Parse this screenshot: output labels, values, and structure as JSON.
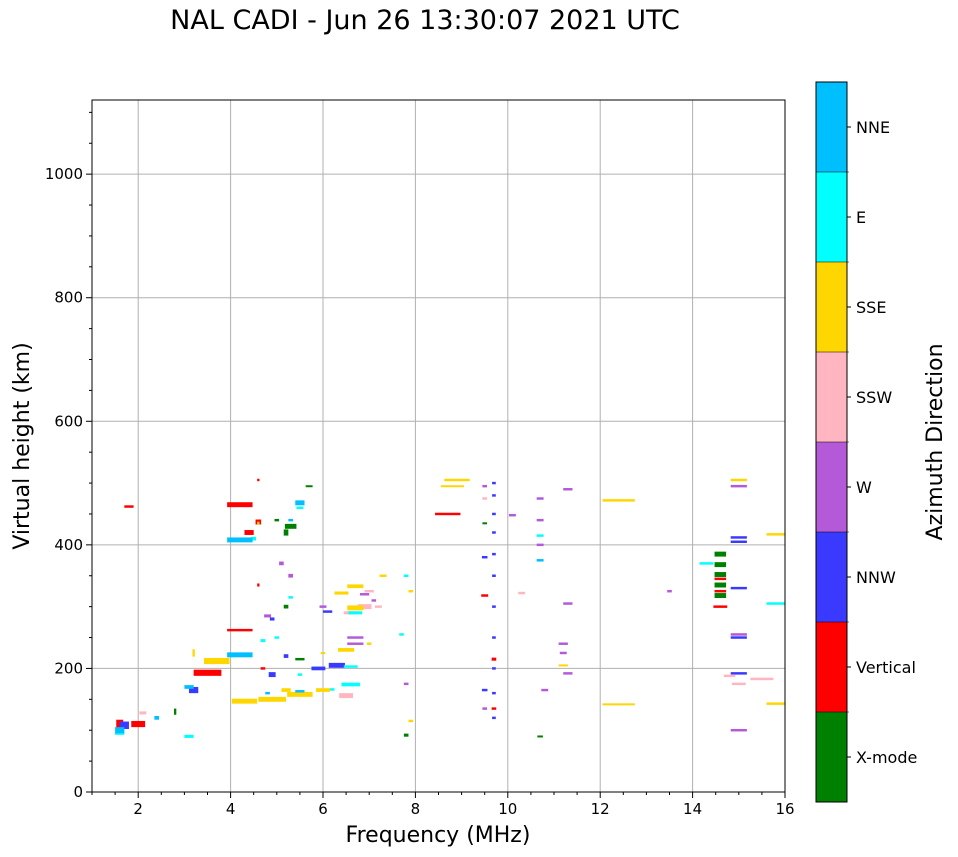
{
  "chart_data": {
    "type": "scatter",
    "title": "NAL CADI - Jun 26 13:30:07 2021 UTC",
    "xlabel": "Frequency (MHz)",
    "ylabel": "Virtual height (km)",
    "xlim": [
      1,
      16
    ],
    "ylim": [
      0,
      1120
    ],
    "grid": true,
    "x_ticks": [
      2,
      4,
      6,
      8,
      10,
      12,
      14,
      16
    ],
    "y_ticks": [
      0,
      200,
      400,
      600,
      800,
      1000
    ],
    "colorbar": {
      "label": "Azimuth Direction",
      "categories": [
        {
          "name": "X-mode",
          "color": "#008000"
        },
        {
          "name": "Vertical",
          "color": "#ff0000"
        },
        {
          "name": "NNW",
          "color": "#3a3aff"
        },
        {
          "name": "W",
          "color": "#b45ad8"
        },
        {
          "name": "SSW",
          "color": "#ffb6c1"
        },
        {
          "name": "SSE",
          "color": "#ffd700"
        },
        {
          "name": "E",
          "color": "#00ffff"
        },
        {
          "name": "NNE",
          "color": "#00bfff"
        }
      ]
    },
    "series": [
      {
        "name": "X-mode",
        "points": [
          [
            5.3,
            430,
            0.25,
            8
          ],
          [
            5.2,
            420,
            0.1,
            10
          ],
          [
            5.0,
            440,
            0.1,
            4
          ],
          [
            5.5,
            215,
            0.2,
            4
          ],
          [
            5.2,
            300,
            0.1,
            6
          ],
          [
            5.7,
            495,
            0.15,
            3
          ],
          [
            7.8,
            92,
            0.1,
            5
          ],
          [
            10.7,
            90,
            0.12,
            3
          ],
          [
            14.6,
            318,
            0.25,
            8
          ],
          [
            14.6,
            335,
            0.25,
            8
          ],
          [
            14.6,
            352,
            0.25,
            8
          ],
          [
            14.6,
            368,
            0.25,
            8
          ],
          [
            14.6,
            385,
            0.25,
            8
          ],
          [
            2.8,
            130,
            0.05,
            10
          ],
          [
            9.5,
            435,
            0.1,
            3
          ]
        ]
      },
      {
        "name": "Vertical",
        "points": [
          [
            4.2,
            465,
            0.55,
            8
          ],
          [
            4.4,
            420,
            0.2,
            8
          ],
          [
            4.6,
            437,
            0.12,
            8
          ],
          [
            4.2,
            262,
            0.55,
            4
          ],
          [
            3.5,
            193,
            0.6,
            10
          ],
          [
            2.0,
            110,
            0.3,
            10
          ],
          [
            1.8,
            462,
            0.2,
            4
          ],
          [
            1.6,
            110,
            0.15,
            14
          ],
          [
            8.7,
            450,
            0.55,
            4
          ],
          [
            9.5,
            318,
            0.15,
            4
          ],
          [
            14.6,
            300,
            0.3,
            4
          ],
          [
            14.6,
            325,
            0.25,
            4
          ],
          [
            14.6,
            345,
            0.25,
            4
          ],
          [
            4.7,
            200,
            0.1,
            4
          ],
          [
            9.7,
            215,
            0.1,
            5
          ],
          [
            9.7,
            135,
            0.1,
            4
          ],
          [
            4.6,
            505,
            0.05,
            4
          ],
          [
            4.6,
            335,
            0.05,
            5
          ]
        ]
      },
      {
        "name": "NNW",
        "points": [
          [
            6.3,
            205,
            0.35,
            8
          ],
          [
            5.9,
            200,
            0.3,
            6
          ],
          [
            4.9,
            190,
            0.15,
            8
          ],
          [
            5.2,
            220,
            0.1,
            6
          ],
          [
            4.9,
            280,
            0.1,
            5
          ],
          [
            3.2,
            165,
            0.2,
            10
          ],
          [
            1.7,
            108,
            0.2,
            12
          ],
          [
            9.7,
            500,
            0.08,
            4
          ],
          [
            9.7,
            480,
            0.08,
            4
          ],
          [
            9.7,
            450,
            0.08,
            4
          ],
          [
            9.7,
            420,
            0.08,
            4
          ],
          [
            9.7,
            385,
            0.08,
            4
          ],
          [
            9.7,
            350,
            0.08,
            4
          ],
          [
            9.7,
            300,
            0.08,
            4
          ],
          [
            9.7,
            250,
            0.08,
            4
          ],
          [
            9.7,
            200,
            0.08,
            4
          ],
          [
            9.7,
            160,
            0.08,
            4
          ],
          [
            9.7,
            120,
            0.08,
            4
          ],
          [
            15.0,
            412,
            0.35,
            4
          ],
          [
            15.0,
            405,
            0.35,
            4
          ],
          [
            15.0,
            330,
            0.35,
            4
          ],
          [
            15.0,
            250,
            0.35,
            4
          ],
          [
            15.0,
            192,
            0.35,
            4
          ],
          [
            9.5,
            380,
            0.12,
            4
          ],
          [
            9.5,
            165,
            0.12,
            4
          ],
          [
            6.1,
            292,
            0.2,
            4
          ]
        ]
      },
      {
        "name": "W",
        "points": [
          [
            6.7,
            250,
            0.35,
            4
          ],
          [
            6.7,
            240,
            0.35,
            4
          ],
          [
            5.3,
            350,
            0.1,
            6
          ],
          [
            5.1,
            370,
            0.1,
            6
          ],
          [
            4.8,
            285,
            0.15,
            5
          ],
          [
            10.7,
            475,
            0.15,
            4
          ],
          [
            10.7,
            440,
            0.15,
            4
          ],
          [
            10.7,
            400,
            0.15,
            4
          ],
          [
            11.3,
            490,
            0.2,
            4
          ],
          [
            11.2,
            240,
            0.2,
            4
          ],
          [
            11.2,
            225,
            0.15,
            4
          ],
          [
            11.3,
            305,
            0.2,
            4
          ],
          [
            11.3,
            192,
            0.2,
            4
          ],
          [
            10.8,
            165,
            0.15,
            4
          ],
          [
            10.1,
            448,
            0.15,
            4
          ],
          [
            15.0,
            495,
            0.35,
            4
          ],
          [
            15.0,
            255,
            0.35,
            4
          ],
          [
            15.0,
            100,
            0.35,
            4
          ],
          [
            13.5,
            325,
            0.1,
            4
          ],
          [
            7.8,
            175,
            0.1,
            4
          ],
          [
            7.1,
            310,
            0.1,
            4
          ],
          [
            6.9,
            320,
            0.2,
            4
          ],
          [
            9.5,
            495,
            0.1,
            4
          ],
          [
            9.5,
            135,
            0.1,
            4
          ],
          [
            6.0,
            300,
            0.15,
            4
          ]
        ]
      },
      {
        "name": "SSW",
        "points": [
          [
            6.9,
            300,
            0.3,
            8
          ],
          [
            6.6,
            290,
            0.3,
            5
          ],
          [
            6.5,
            156,
            0.3,
            8
          ],
          [
            7.0,
            325,
            0.2,
            4
          ],
          [
            10.3,
            322,
            0.15,
            4
          ],
          [
            9.5,
            475,
            0.1,
            4
          ],
          [
            14.8,
            188,
            0.25,
            4
          ],
          [
            15.0,
            175,
            0.3,
            4
          ],
          [
            15.5,
            183,
            0.5,
            4
          ],
          [
            2.1,
            128,
            0.15,
            5
          ],
          [
            7.2,
            300,
            0.15,
            4
          ]
        ]
      },
      {
        "name": "SSE",
        "points": [
          [
            3.7,
            212,
            0.55,
            10
          ],
          [
            4.3,
            147,
            0.55,
            8
          ],
          [
            4.9,
            150,
            0.6,
            8
          ],
          [
            5.5,
            158,
            0.55,
            8
          ],
          [
            6.0,
            165,
            0.3,
            6
          ],
          [
            6.5,
            230,
            0.35,
            6
          ],
          [
            6.7,
            333,
            0.35,
            6
          ],
          [
            6.4,
            322,
            0.3,
            5
          ],
          [
            6.7,
            298,
            0.35,
            8
          ],
          [
            7.3,
            350,
            0.15,
            4
          ],
          [
            8.9,
            505,
            0.55,
            4
          ],
          [
            8.8,
            495,
            0.5,
            3
          ],
          [
            12.4,
            472,
            0.7,
            4
          ],
          [
            12.4,
            142,
            0.7,
            3
          ],
          [
            15.0,
            505,
            0.35,
            4
          ],
          [
            15.8,
            417,
            0.4,
            4
          ],
          [
            15.8,
            143,
            0.4,
            4
          ],
          [
            11.2,
            205,
            0.2,
            3
          ],
          [
            7.9,
            325,
            0.1,
            4
          ],
          [
            3.2,
            225,
            0.05,
            12
          ],
          [
            7.0,
            240,
            0.1,
            4
          ],
          [
            5.2,
            165,
            0.2,
            6
          ],
          [
            6.0,
            225,
            0.1,
            3
          ],
          [
            7.9,
            115,
            0.1,
            4
          ],
          [
            4.6,
            435,
            0.05,
            5
          ]
        ]
      },
      {
        "name": "E",
        "points": [
          [
            6.7,
            290,
            0.3,
            5
          ],
          [
            6.6,
            174,
            0.4,
            6
          ],
          [
            6.6,
            203,
            0.3,
            4
          ],
          [
            5.0,
            250,
            0.1,
            4
          ],
          [
            4.7,
            245,
            0.1,
            5
          ],
          [
            4.5,
            410,
            0.1,
            6
          ],
          [
            5.5,
            190,
            0.1,
            4
          ],
          [
            5.3,
            315,
            0.1,
            4
          ],
          [
            7.7,
            255,
            0.1,
            4
          ],
          [
            7.8,
            350,
            0.1,
            4
          ],
          [
            14.3,
            370,
            0.3,
            4
          ],
          [
            15.8,
            305,
            0.4,
            4
          ],
          [
            3.1,
            90,
            0.2,
            5
          ],
          [
            1.6,
            95,
            0.2,
            5
          ],
          [
            10.7,
            415,
            0.15,
            4
          ],
          [
            5.5,
            460,
            0.15,
            4
          ],
          [
            6.2,
            166,
            0.1,
            4
          ]
        ]
      },
      {
        "name": "NNE",
        "points": [
          [
            4.2,
            408,
            0.55,
            8
          ],
          [
            4.2,
            222,
            0.55,
            8
          ],
          [
            5.5,
            468,
            0.2,
            8
          ],
          [
            5.3,
            440,
            0.1,
            4
          ],
          [
            1.6,
            100,
            0.2,
            10
          ],
          [
            2.4,
            120,
            0.1,
            6
          ],
          [
            3.1,
            170,
            0.2,
            6
          ],
          [
            4.8,
            160,
            0.1,
            4
          ],
          [
            5.5,
            163,
            0.2,
            4
          ],
          [
            10.7,
            375,
            0.15,
            4
          ]
        ]
      }
    ]
  }
}
